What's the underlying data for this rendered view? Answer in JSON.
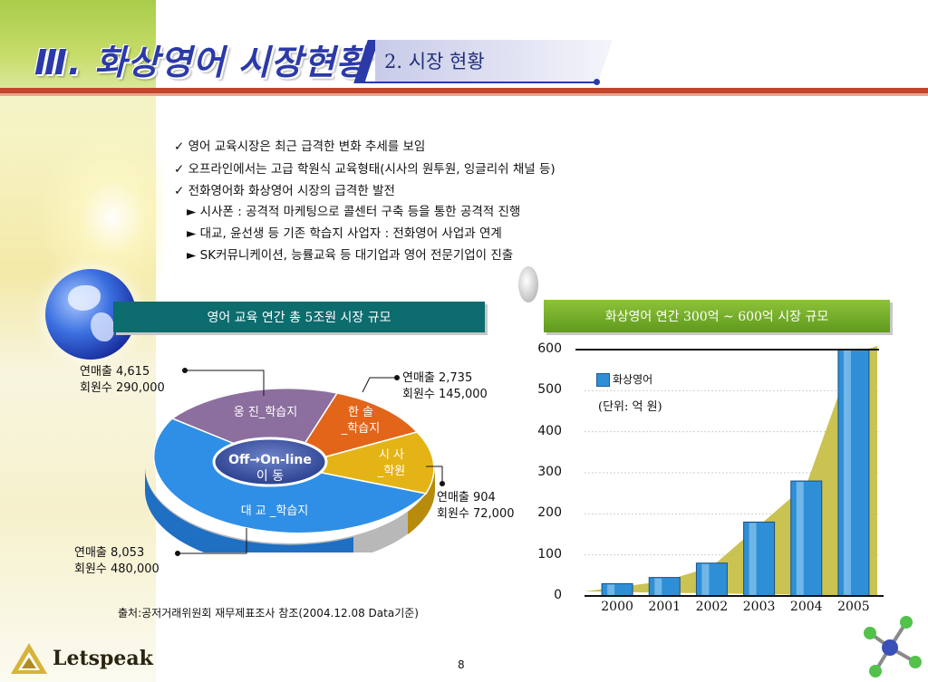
{
  "header": {
    "main_title": "Ⅲ. 화상영어 시장현황",
    "sub_title": "2. 시장 현황"
  },
  "bullets": [
    "✓ 영어 교육시장은 최근 급격한 변화 추세를 보임",
    "✓ 오프라인에서는 고급 학원식  교육형태(시사의 원투원, 잉글리쉬 채널 등)",
    "✓ 전화영어화 화상영어 시장의 급격한 발전"
  ],
  "sub_bullets": [
    "► 시사폰 : 공격적 마케팅으로 콜센터 구축 등을 통한 공격적 진행",
    "► 대교, 윤선생 등 기존 학습지 사업자 : 전화영어 사업과 연계",
    "► SK커뮤니케이션, 능률교육 등 대기업과 영어 전문기업이 진출"
  ],
  "pie_panel": {
    "header": "영어 교육 연간 총 5조원 시장 규모",
    "center_label_1": "Off→On-line",
    "center_label_2": "이 동",
    "slices": [
      {
        "label": "웅 진_학습지",
        "sales": "연매출 4,615",
        "members": "회원수 290,000",
        "color": "#8c6f9e"
      },
      {
        "label_1": "한 솔",
        "label_2": "_학습지",
        "sales": "연매출 2,735",
        "members": "회원수 145,000",
        "color": "#e2651a"
      },
      {
        "label_1": "시 사",
        "label_2": "_학원",
        "sales": "연매출 904",
        "members": "회원수 72,000",
        "color": "#e4b416"
      },
      {
        "label": "대 교 _학습지",
        "sales": "연매출 8,053",
        "members": "회원수 480,000",
        "color": "#2f8fe6"
      }
    ],
    "source": "출처:공저거래위원회 재무제표조사 참조(2004.12.08 Data기준)"
  },
  "chart_data": {
    "type": "bar",
    "title": "화상영어 연간 300억 ~ 600억 시장 규모",
    "categories": [
      "2000",
      "2001",
      "2002",
      "2003",
      "2004",
      "2005"
    ],
    "series": [
      {
        "name": "화상영어",
        "values": [
          30,
          45,
          80,
          180,
          280,
          600
        ],
        "color": "#2e8fd6"
      }
    ],
    "unit_note": "(단위: 억 원)",
    "yticks": [
      "0",
      "100",
      "200",
      "300",
      "400",
      "500",
      "600"
    ],
    "ylim": [
      0,
      600
    ],
    "grid": true,
    "legend": "top-left"
  },
  "footer": {
    "logo_text": "Letspeak",
    "page_number": "8"
  }
}
